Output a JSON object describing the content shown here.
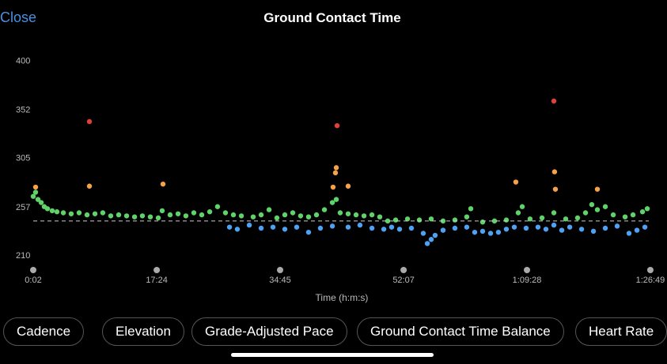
{
  "header": {
    "close": "Close",
    "title": "Ground Contact Time"
  },
  "chart_data": {
    "type": "scatter",
    "xlabel": "Time (h:m:s)",
    "xlim": [
      2,
      5196
    ],
    "ylim": [
      200,
      408
    ],
    "xticks": [
      {
        "value": 2,
        "label": "0:02"
      },
      {
        "value": 1044,
        "label": "17:24"
      },
      {
        "value": 2085,
        "label": "34:45"
      },
      {
        "value": 3127,
        "label": "52:07"
      },
      {
        "value": 4168,
        "label": "1:09:28"
      },
      {
        "value": 5209,
        "label": "1:26:49"
      }
    ],
    "yticks": [
      210,
      257,
      305,
      352,
      400
    ],
    "grid": false,
    "reference_line": 244,
    "series": [
      {
        "color": "#5fd36a",
        "x": [
          2,
          22,
          42,
          69,
          95,
          122,
          162,
          202,
          256,
          322,
          389,
          456,
          523,
          589,
          656,
          723,
          790,
          857,
          923,
          990,
          1057,
          1090,
          1157,
          1224,
          1290,
          1357,
          1424,
          1491,
          1557,
          1624,
          1691,
          1758,
          1858,
          1925,
          1992,
          2058,
          2125,
          2192,
          2258,
          2325,
          2392,
          2459,
          2526,
          2559,
          2592,
          2659,
          2726,
          2793,
          2860,
          2926,
          2993,
          3060,
          3160,
          3260,
          3360,
          3460,
          3560,
          3660,
          3694,
          3794,
          3894,
          3994,
          4094,
          4128,
          4194,
          4295,
          4395,
          4495,
          4595,
          4662,
          4715,
          4762,
          4829,
          4896,
          4996,
          5063,
          5143,
          5183
        ],
        "values": [
          268,
          272,
          265,
          262,
          258,
          256,
          254,
          253,
          252,
          251,
          252,
          250,
          251,
          252,
          249,
          250,
          249,
          248,
          249,
          248,
          247,
          254,
          250,
          251,
          249,
          252,
          250,
          253,
          258,
          252,
          250,
          249,
          248,
          250,
          255,
          247,
          250,
          252,
          249,
          248,
          250,
          255,
          262,
          265,
          252,
          251,
          250,
          249,
          250,
          248,
          244,
          245,
          246,
          245,
          246,
          244,
          245,
          248,
          256,
          243,
          244,
          245,
          252,
          258,
          246,
          247,
          252,
          246,
          247,
          252,
          260,
          255,
          258,
          250,
          248,
          250,
          253,
          256
        ]
      },
      {
        "color": "#4ea1f3",
        "x": [
          1658,
          1724,
          1825,
          1925,
          2025,
          2125,
          2225,
          2325,
          2425,
          2526,
          2659,
          2759,
          2860,
          2960,
          3026,
          3093,
          3193,
          3293,
          3327,
          3360,
          3393,
          3460,
          3560,
          3660,
          3727,
          3794,
          3861,
          3927,
          3994,
          4061,
          4161,
          4261,
          4328,
          4395,
          4462,
          4529,
          4629,
          4729,
          4829,
          4929,
          5029,
          5096,
          5163
        ],
        "values": [
          238,
          236,
          240,
          237,
          238,
          236,
          238,
          233,
          237,
          239,
          238,
          240,
          237,
          236,
          238,
          236,
          237,
          232,
          222,
          226,
          230,
          235,
          237,
          238,
          233,
          234,
          232,
          233,
          236,
          238,
          237,
          238,
          236,
          240,
          235,
          238,
          236,
          234,
          237,
          239,
          232,
          235,
          238
        ]
      },
      {
        "color": "#f7a249",
        "x": [
          22,
          476,
          1097,
          2532,
          2552,
          2559,
          2659,
          4074,
          4401,
          4408,
          4762
        ],
        "values": [
          277,
          278,
          280,
          277,
          291,
          296,
          278,
          282,
          292,
          275,
          275
        ]
      },
      {
        "color": "#e0403a",
        "x": [
          476,
          2566,
          4395
        ],
        "values": [
          341,
          337,
          361
        ]
      }
    ]
  },
  "buttons": [
    "Cadence",
    "Elevation",
    "Grade-Adjusted Pace",
    "Ground Contact Time Balance",
    "Heart Rate"
  ]
}
